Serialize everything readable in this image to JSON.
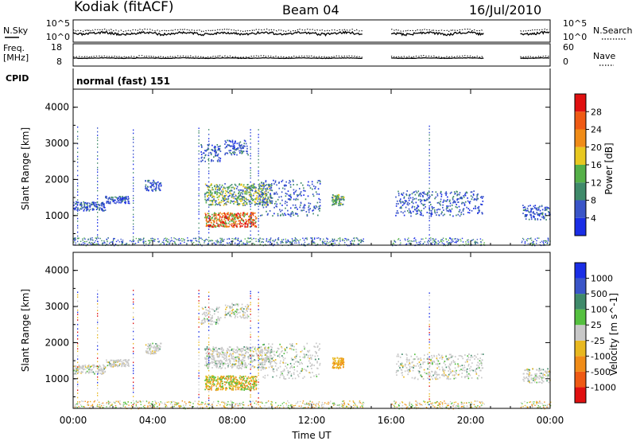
{
  "header": {
    "station": "Kodiak (fitACF)",
    "beam": "Beam 04",
    "date": "16/Jul/2010"
  },
  "noise_panel": {
    "left_label": "N.Sky",
    "right_label": "N.Search",
    "left_ticks": [
      "10^5",
      "10^0"
    ],
    "right_ticks": [
      "10^5",
      "10^0"
    ]
  },
  "freq_panel": {
    "left_label_1": "Freq.",
    "left_label_2": "[MHz]",
    "right_label": "Nave",
    "left_ticks": [
      "18",
      "8"
    ],
    "right_ticks": [
      "60",
      "0"
    ]
  },
  "cpid": {
    "label": "CPID",
    "value": "normal (fast) 151"
  },
  "x_axis": {
    "label": "Time UT",
    "ticks": [
      "00:00",
      "04:00",
      "08:00",
      "12:00",
      "16:00",
      "20:00",
      "00:00"
    ]
  },
  "power_panel": {
    "ylabel": "Slant Range [km]",
    "yticks": [
      "1000",
      "2000",
      "3000",
      "4000"
    ],
    "colorbar_label": "Power [dB]",
    "colorbar_ticks": [
      "4",
      "8",
      "12",
      "16",
      "20",
      "24",
      "28"
    ],
    "colors": [
      "#1a2ee6",
      "#3a55c8",
      "#3f8a6a",
      "#55b048",
      "#e8c820",
      "#f08c18",
      "#ef5a14",
      "#e01010"
    ]
  },
  "velocity_panel": {
    "ylabel": "Slant Range [km]",
    "yticks": [
      "1000",
      "2000",
      "3000",
      "4000"
    ],
    "colorbar_label": "Velocity [m s^-1]",
    "colorbar_ticks": [
      "1000",
      "500",
      "100",
      "25",
      "-25",
      "-100",
      "-500",
      "-1000"
    ],
    "colors": [
      "#1a2ee6",
      "#3a55c8",
      "#3f8a6a",
      "#55c040",
      "#c8c8c8",
      "#e8b820",
      "#f08c18",
      "#ef5a14",
      "#e01010"
    ]
  },
  "chart_data": {
    "type": "heatmap",
    "x_range_hours": [
      0,
      24
    ],
    "y_range_km": [
      180,
      4500
    ],
    "data_gaps_hours": [
      [
        14.6,
        16.0
      ],
      [
        20.7,
        22.5
      ]
    ],
    "power_features": [
      {
        "t": [
          0.0,
          1.6
        ],
        "range_km": [
          1150,
          1400
        ],
        "level": "low"
      },
      {
        "t": [
          1.6,
          2.8
        ],
        "range_km": [
          1350,
          1550
        ],
        "level": "low"
      },
      {
        "t": [
          3.6,
          4.4
        ],
        "range_km": [
          1700,
          2000
        ],
        "level": "low"
      },
      {
        "t": [
          6.4,
          7.4
        ],
        "range_km": [
          2500,
          3000
        ],
        "level": "low"
      },
      {
        "t": [
          6.6,
          10.0
        ],
        "range_km": [
          1300,
          1900
        ],
        "level": "medium"
      },
      {
        "t": [
          6.6,
          9.2
        ],
        "range_km": [
          700,
          1100
        ],
        "level": "high"
      },
      {
        "t": [
          7.6,
          8.8
        ],
        "range_km": [
          2700,
          3100
        ],
        "level": "low"
      },
      {
        "t": [
          9.4,
          12.4
        ],
        "range_km": [
          1000,
          2000
        ],
        "level": "low"
      },
      {
        "t": [
          13.0,
          13.6
        ],
        "range_km": [
          1300,
          1600
        ],
        "level": "medium"
      },
      {
        "t": [
          16.2,
          20.6
        ],
        "range_km": [
          1000,
          1700
        ],
        "level": "low"
      },
      {
        "t": [
          22.6,
          24.0
        ],
        "range_km": [
          900,
          1300
        ],
        "level": "low"
      }
    ]
  }
}
